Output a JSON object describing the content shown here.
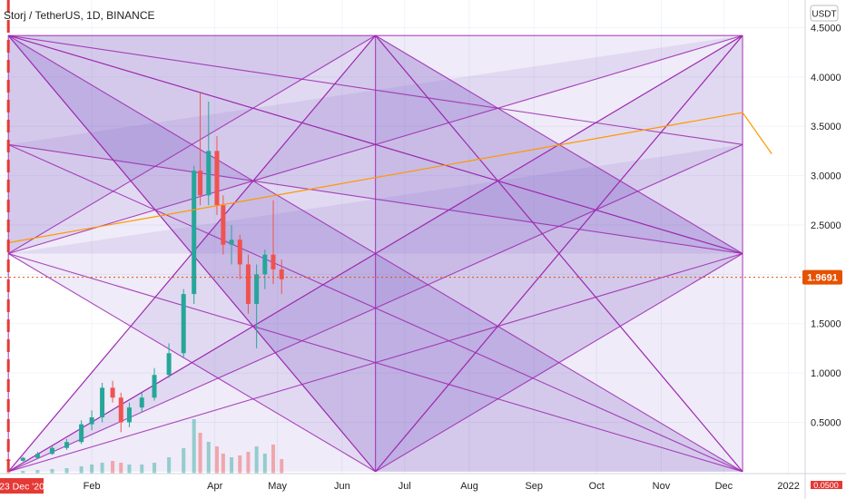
{
  "header": {
    "symbol_title": "Storj / TetherUS, 1D, BINANCE",
    "currency_label": "USDT"
  },
  "price_axis": {
    "ticks": [
      {
        "label": "4.5000",
        "value": 4.5
      },
      {
        "label": "4.0000",
        "value": 4.0
      },
      {
        "label": "3.5000",
        "value": 3.5
      },
      {
        "label": "3.0000",
        "value": 3.0
      },
      {
        "label": "2.5000",
        "value": 2.5
      },
      {
        "label": "2.0000",
        "value": 2.0
      },
      {
        "label": "1.5000",
        "value": 1.5
      },
      {
        "label": "1.0000",
        "value": 1.0
      },
      {
        "label": "0.5000",
        "value": 0.5
      }
    ],
    "last_price_label": "1.9691",
    "last_price": 1.9691,
    "bottom_badge_label": "0.0500"
  },
  "time_axis": {
    "labels": [
      {
        "label": "Feb",
        "t": 40
      },
      {
        "label": "Apr",
        "t": 99
      },
      {
        "label": "May",
        "t": 129
      },
      {
        "label": "Jun",
        "t": 160
      },
      {
        "label": "Jul",
        "t": 190
      },
      {
        "label": "Aug",
        "t": 221
      },
      {
        "label": "Sep",
        "t": 252
      },
      {
        "label": "Oct",
        "t": 282
      },
      {
        "label": "Nov",
        "t": 313
      },
      {
        "label": "Dec",
        "t": 343
      },
      {
        "label": "2022",
        "t": 374
      }
    ],
    "marker_label": "23 Dec '20",
    "marker_t": 0
  },
  "colors": {
    "accent_up": "#26a69a",
    "accent_down": "#ef5350",
    "price_badge": "#e65100",
    "marker": "#e53935",
    "gann_stroke": "#9c27b0",
    "gann_fill": "#7e57c2",
    "trend_line": "#ff9800",
    "axis_text": "#222222"
  },
  "chart_data": {
    "type": "candlestick",
    "title": "Storj / TetherUS, 1D, BINANCE",
    "x_unit": "days since 23 Dec 2020",
    "xlim": [
      -4,
      382
    ],
    "ylim": [
      -0.02,
      4.78
    ],
    "candles": [
      [
        0,
        0.12,
        0.14,
        0.1,
        0.11
      ],
      [
        7,
        0.11,
        0.15,
        0.1,
        0.14
      ],
      [
        14,
        0.14,
        0.2,
        0.13,
        0.18
      ],
      [
        21,
        0.18,
        0.26,
        0.17,
        0.24
      ],
      [
        28,
        0.24,
        0.33,
        0.22,
        0.3
      ],
      [
        35,
        0.3,
        0.52,
        0.28,
        0.48
      ],
      [
        40,
        0.48,
        0.62,
        0.42,
        0.55
      ],
      [
        45,
        0.55,
        0.9,
        0.5,
        0.85
      ],
      [
        50,
        0.85,
        0.92,
        0.7,
        0.75
      ],
      [
        54,
        0.75,
        0.8,
        0.4,
        0.5
      ],
      [
        58,
        0.5,
        0.7,
        0.45,
        0.65
      ],
      [
        64,
        0.65,
        0.8,
        0.6,
        0.75
      ],
      [
        70,
        0.75,
        1.05,
        0.72,
        0.98
      ],
      [
        77,
        0.98,
        1.3,
        0.95,
        1.2
      ],
      [
        84,
        1.2,
        1.85,
        1.15,
        1.8
      ],
      [
        89,
        1.8,
        3.1,
        1.7,
        3.05
      ],
      [
        92,
        3.05,
        3.85,
        2.7,
        2.8
      ],
      [
        96,
        2.8,
        3.75,
        2.7,
        3.25
      ],
      [
        100,
        3.25,
        3.4,
        2.6,
        2.7
      ],
      [
        103,
        2.7,
        2.8,
        2.2,
        2.3
      ],
      [
        107,
        2.3,
        2.5,
        2.1,
        2.35
      ],
      [
        111,
        2.35,
        2.4,
        1.95,
        2.1
      ],
      [
        115,
        2.1,
        2.2,
        1.6,
        1.7
      ],
      [
        119,
        1.7,
        2.1,
        1.25,
        2.0
      ],
      [
        123,
        2.0,
        2.25,
        1.85,
        2.2
      ],
      [
        127,
        2.2,
        2.75,
        1.9,
        2.05
      ],
      [
        131,
        2.05,
        2.15,
        1.8,
        1.95
      ]
    ],
    "volume_heights": [
      0.02,
      0.03,
      0.04,
      0.05,
      0.06,
      0.08,
      0.1,
      0.12,
      0.14,
      0.12,
      0.1,
      0.1,
      0.12,
      0.18,
      0.28,
      0.6,
      0.45,
      0.35,
      0.3,
      0.22,
      0.18,
      0.2,
      0.24,
      0.3,
      0.22,
      0.32,
      0.16
    ],
    "gann_box": {
      "t_start": 0,
      "t_end": 352,
      "p_top": 4.42,
      "p_bottom": 0.0
    },
    "trend_line": {
      "points": [
        [
          0,
          2.32
        ],
        [
          352,
          3.64
        ],
        [
          366,
          3.22
        ]
      ]
    },
    "marker_line_t": 0
  }
}
